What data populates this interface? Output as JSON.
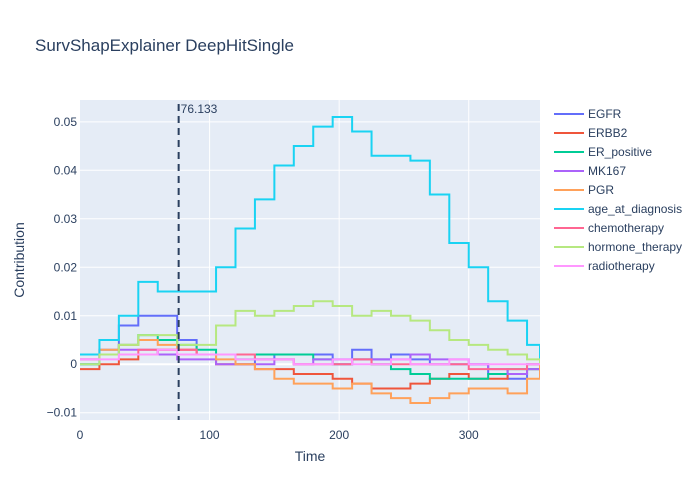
{
  "title": "SurvShapExplainer DeepHitSingle",
  "chart_data": {
    "type": "line",
    "line_shape": "step",
    "xlabel": "Time",
    "ylabel": "Contribution",
    "xlim": [
      0,
      355
    ],
    "ylim": [
      -0.0115,
      0.0545
    ],
    "x_ticks": [
      0,
      100,
      200,
      300
    ],
    "y_ticks": [
      -0.01,
      0,
      0.01,
      0.02,
      0.03,
      0.04,
      0.05
    ],
    "y_tick_labels": [
      "−0.01",
      "0",
      "0.01",
      "0.02",
      "0.03",
      "0.04",
      "0.05"
    ],
    "grid": true,
    "legend_position": "right",
    "vertical_line": {
      "x": 76.133,
      "label": "76.133",
      "color": "#2a3f5f",
      "dash": "dash"
    },
    "x": [
      0,
      15,
      30,
      45,
      60,
      75,
      90,
      105,
      120,
      135,
      150,
      165,
      180,
      195,
      210,
      225,
      240,
      255,
      270,
      285,
      300,
      315,
      330,
      345,
      355
    ],
    "series": [
      {
        "name": "EGFR",
        "color": "#636efa",
        "values": [
          0.0,
          0.003,
          0.008,
          0.01,
          0.01,
          0.005,
          0.002,
          0.002,
          0.0,
          0.001,
          0.002,
          0.002,
          0.002,
          0.001,
          0.003,
          0.001,
          0.002,
          0.001,
          0.0,
          0.0,
          0.0,
          -0.002,
          -0.003,
          0.0,
          0.0
        ]
      },
      {
        "name": "ERBB2",
        "color": "#EF553B",
        "values": [
          -0.001,
          0.0,
          0.001,
          0.002,
          0.003,
          0.003,
          0.002,
          0.0,
          0.0,
          -0.001,
          -0.001,
          -0.002,
          -0.002,
          -0.003,
          -0.004,
          -0.005,
          -0.005,
          -0.004,
          -0.003,
          -0.002,
          -0.003,
          -0.003,
          -0.002,
          -0.001,
          0.0
        ]
      },
      {
        "name": "ER_positive",
        "color": "#00cc96",
        "values": [
          0.0,
          0.002,
          0.004,
          0.006,
          0.005,
          0.004,
          0.003,
          0.002,
          0.001,
          0.002,
          0.002,
          0.002,
          0.001,
          0.0,
          0.001,
          0.0,
          -0.001,
          -0.002,
          -0.003,
          -0.003,
          -0.003,
          -0.002,
          -0.001,
          -0.001,
          0.0
        ]
      },
      {
        "name": "MK167",
        "color": "#ab63fa",
        "values": [
          0.001,
          0.002,
          0.003,
          0.003,
          0.002,
          0.001,
          0.001,
          0.0,
          0.0,
          0.0,
          0.001,
          0.0,
          0.001,
          0.0,
          0.001,
          0.001,
          0.001,
          0.002,
          0.001,
          0.001,
          0.0,
          -0.001,
          -0.002,
          -0.001,
          0.0
        ]
      },
      {
        "name": "PGR",
        "color": "#FFA15A",
        "values": [
          0.002,
          0.003,
          0.004,
          0.005,
          0.004,
          0.003,
          0.002,
          0.001,
          0.0,
          -0.001,
          -0.003,
          -0.004,
          -0.004,
          -0.005,
          -0.004,
          -0.006,
          -0.007,
          -0.008,
          -0.007,
          -0.006,
          -0.005,
          -0.005,
          -0.006,
          -0.003,
          0.0
        ]
      },
      {
        "name": "age_at_diagnosis",
        "color": "#19d3f3",
        "values": [
          0.002,
          0.005,
          0.01,
          0.017,
          0.015,
          0.015,
          0.015,
          0.02,
          0.028,
          0.034,
          0.041,
          0.045,
          0.049,
          0.051,
          0.048,
          0.043,
          0.043,
          0.042,
          0.035,
          0.025,
          0.02,
          0.013,
          0.009,
          0.004,
          0.001
        ]
      },
      {
        "name": "chemotherapy",
        "color": "#FF6692",
        "values": [
          0.001,
          0.002,
          0.002,
          0.003,
          0.003,
          0.003,
          0.002,
          0.002,
          0.002,
          0.001,
          0.001,
          0.0,
          0.0,
          0.0,
          0.001,
          0.0,
          0.0,
          0.0,
          0.0,
          0.0,
          -0.001,
          -0.001,
          -0.001,
          0.0,
          0.0
        ]
      },
      {
        "name": "hormone_therapy",
        "color": "#B6E880",
        "values": [
          0.0,
          0.002,
          0.004,
          0.006,
          0.006,
          0.004,
          0.004,
          0.008,
          0.011,
          0.01,
          0.011,
          0.012,
          0.013,
          0.012,
          0.01,
          0.011,
          0.01,
          0.009,
          0.007,
          0.005,
          0.004,
          0.003,
          0.002,
          0.001,
          0.0
        ]
      },
      {
        "name": "radiotherapy",
        "color": "#FF97FF",
        "values": [
          0.001,
          0.001,
          0.002,
          0.002,
          0.003,
          0.002,
          0.002,
          0.002,
          0.001,
          0.001,
          0.001,
          0.0,
          0.0,
          0.001,
          0.0,
          0.0,
          0.001,
          0.0,
          0.0,
          0.001,
          0.0,
          0.0,
          0.0,
          0.0,
          0.0
        ]
      }
    ]
  }
}
